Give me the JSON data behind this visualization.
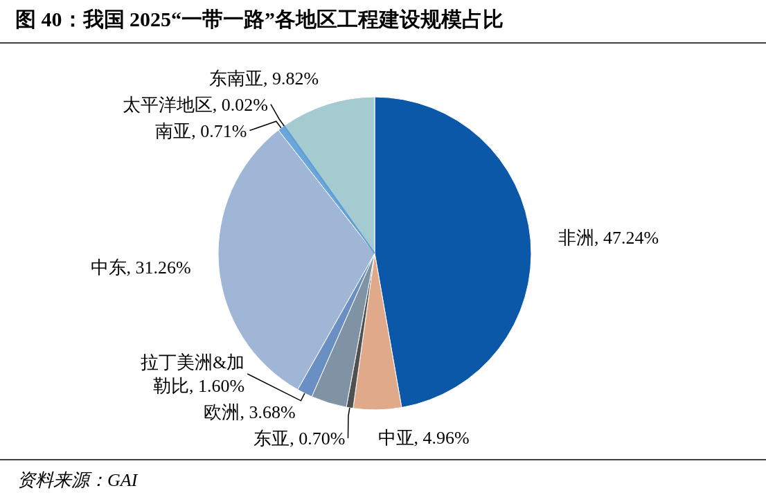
{
  "chart_data": {
    "type": "pie",
    "title": "图 40：我国 2025“一带一路”各地区工程建设规模占比",
    "categories": [
      "非洲",
      "中亚",
      "东亚",
      "欧洲",
      "拉丁美洲&加勒比",
      "中东",
      "南亚",
      "太平洋地区",
      "东南亚"
    ],
    "values": [
      47.24,
      4.96,
      0.7,
      3.68,
      1.6,
      31.26,
      0.71,
      0.02,
      9.82
    ],
    "value_labels": [
      "47.24%",
      "4.96%",
      "0.70%",
      "3.68%",
      "1.60%",
      "31.26%",
      "0.71%",
      "0.02%",
      "9.82%"
    ],
    "colors": [
      "#0b57a8",
      "#dfa98a",
      "#505050",
      "#7f93a4",
      "#6a8fc3",
      "#a0b6d6",
      "#6aa6dc",
      "#5f9bd5",
      "#a3cbd0"
    ],
    "data_labels": true,
    "annotations": [
      "资料来源：GAI"
    ]
  }
}
